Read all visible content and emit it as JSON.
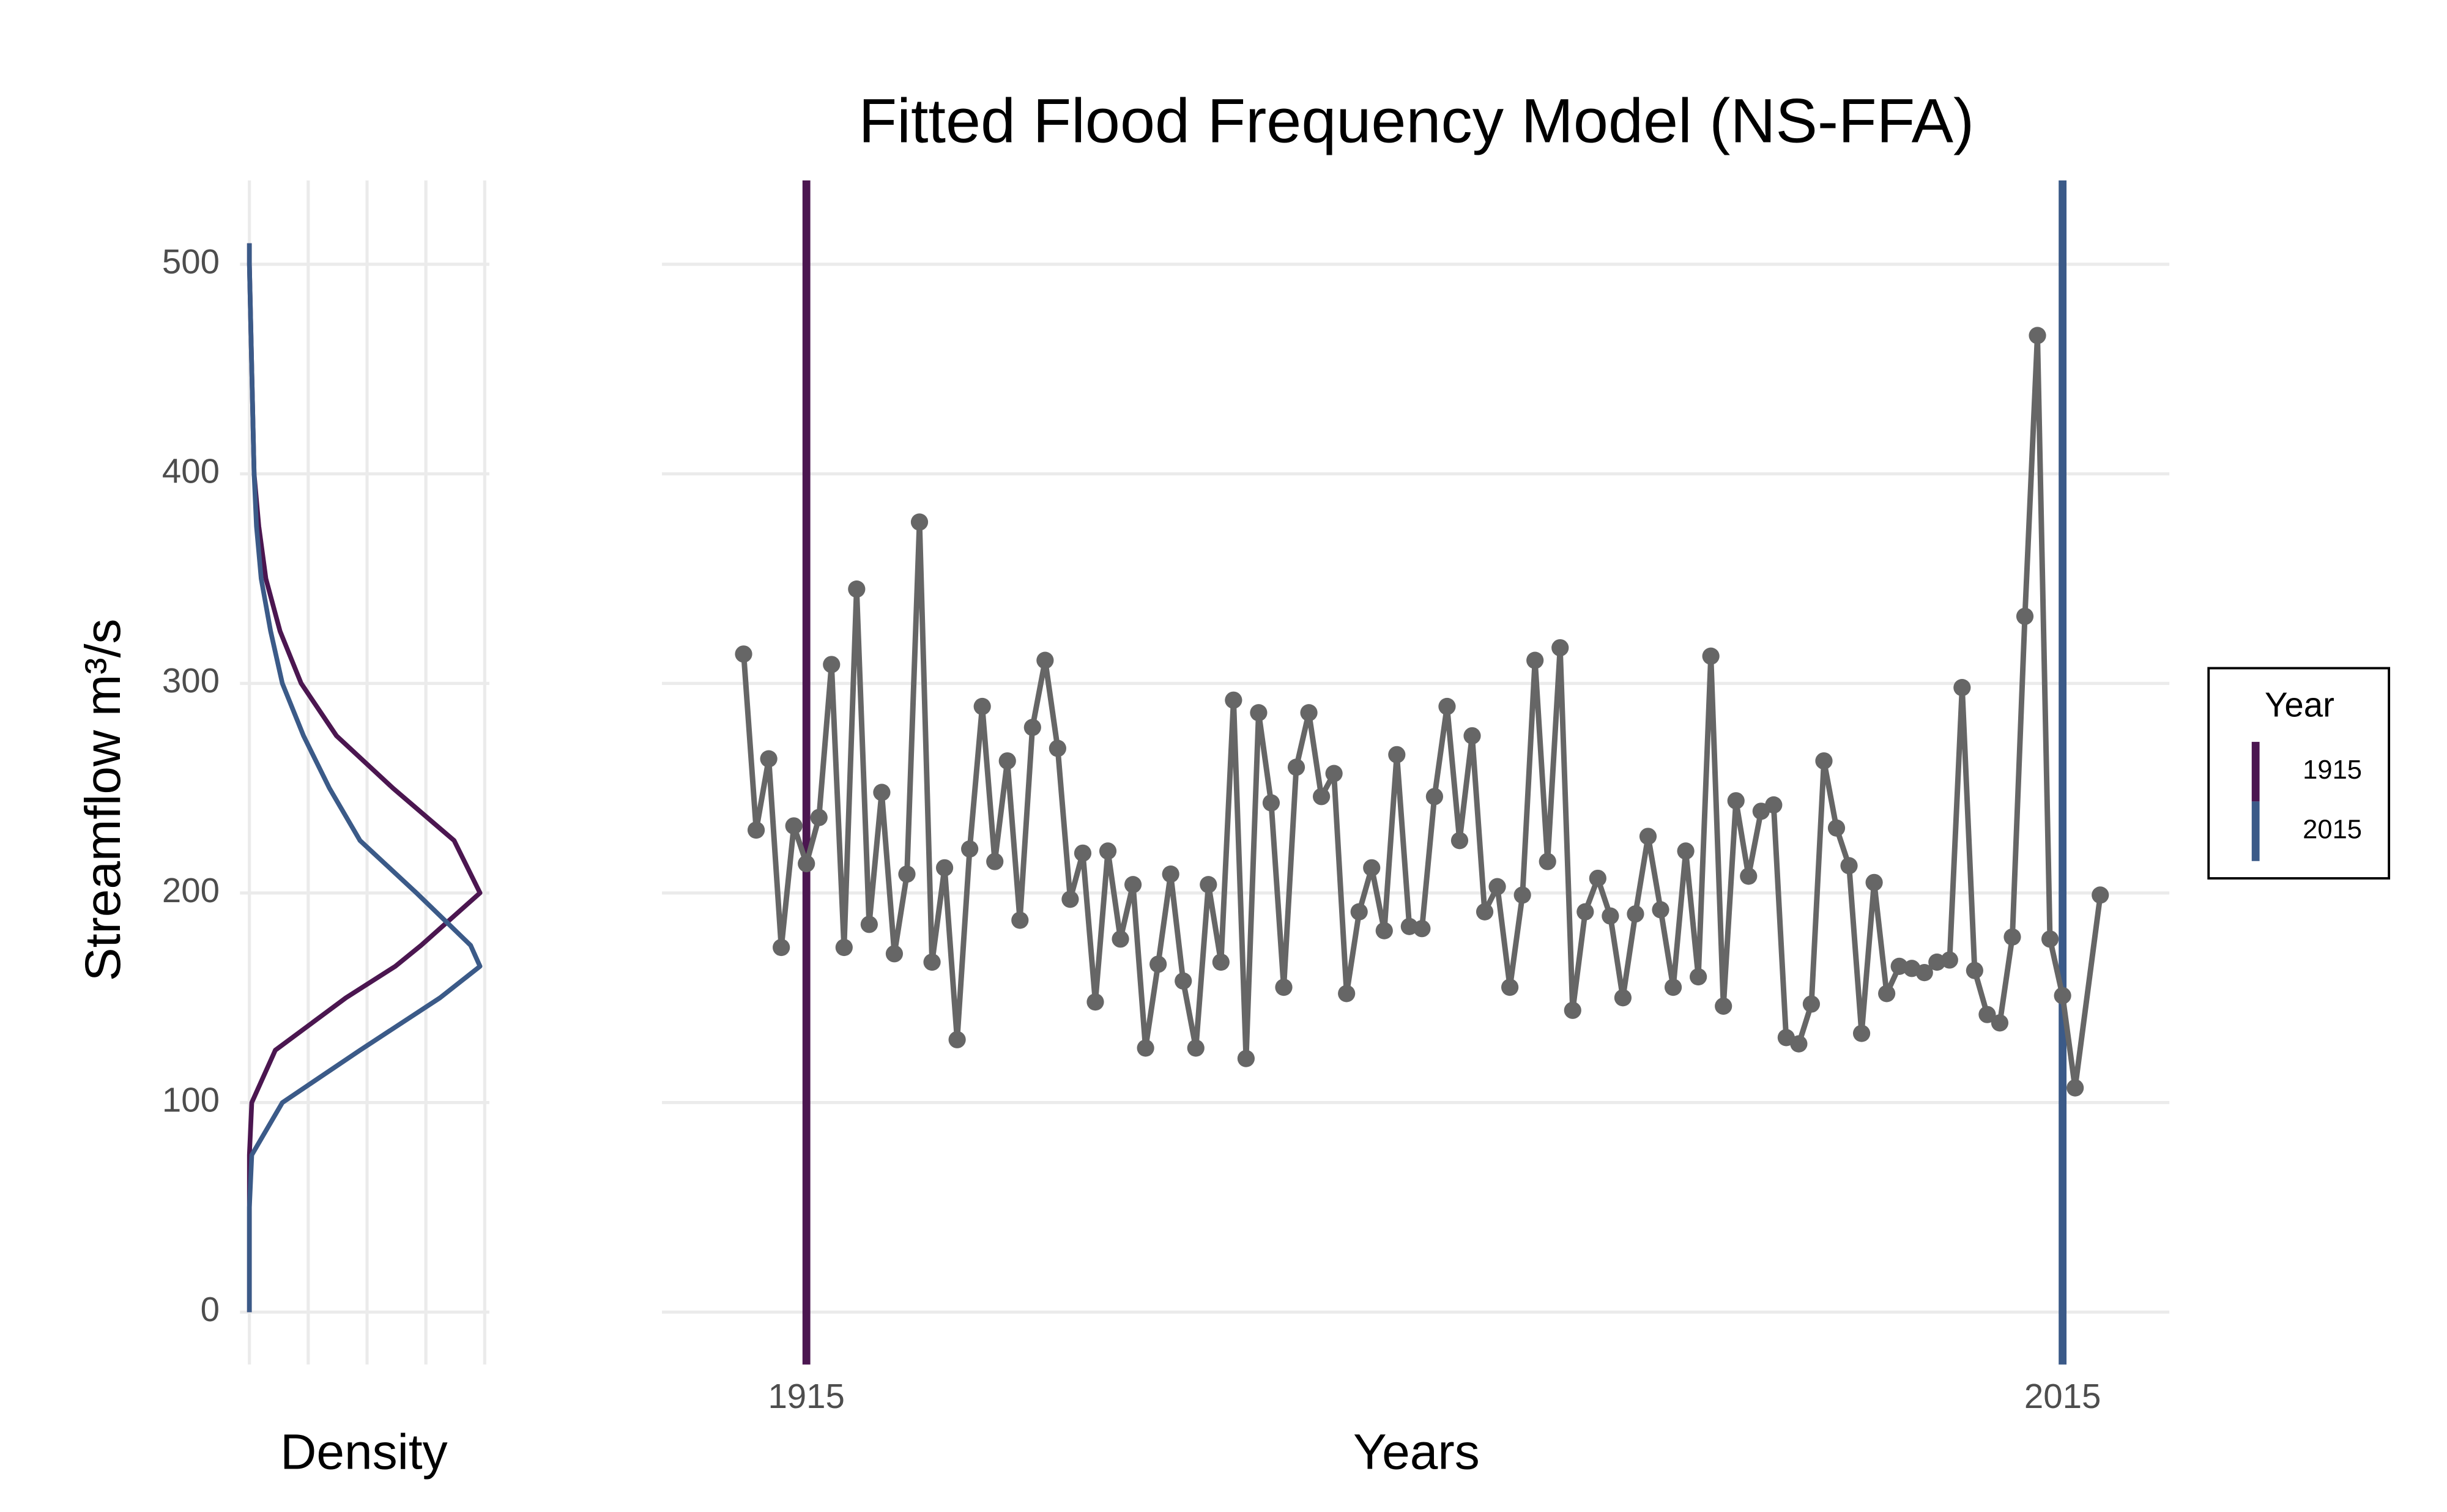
{
  "chart_data": [
    {
      "type": "density",
      "xlabel": "Density",
      "ylabel": "Streamflow m³/s",
      "xlim": [
        0,
        0.01
      ],
      "xticks": [
        0,
        0.0025,
        0.005,
        0.0075,
        0.01
      ],
      "ylim": [
        -25,
        540
      ],
      "yticks": [
        0,
        100,
        200,
        300,
        400,
        500
      ],
      "grid": true,
      "y": [
        0,
        50,
        75,
        100,
        125,
        150,
        165,
        175,
        200,
        225,
        250,
        275,
        300,
        325,
        350,
        375,
        400,
        450,
        500,
        510
      ],
      "series": [
        {
          "name": "1915",
          "color": "#4b1650",
          "values": [
            0,
            0,
            0,
            0.0001,
            0.0011,
            0.0041,
            0.0062,
            0.0073,
            0.0098,
            0.0087,
            0.0061,
            0.0037,
            0.0022,
            0.0013,
            0.0007,
            0.0004,
            0.0002,
            0.0001,
            0,
            0
          ]
        },
        {
          "name": "2015",
          "color": "#3b5a88",
          "values": [
            0,
            0,
            0.0001,
            0.0014,
            0.0047,
            0.0081,
            0.0098,
            0.0094,
            0.0071,
            0.0047,
            0.0034,
            0.0023,
            0.0014,
            0.0009,
            0.0005,
            0.0003,
            0.0002,
            0.0001,
            0,
            0
          ]
        }
      ]
    },
    {
      "type": "line",
      "title": "Fitted Flood Frequency Model (NS-FFA)",
      "xlabel": "Years",
      "xlim": [
        1903.5,
        2023.5
      ],
      "xticks": [
        1915,
        2015
      ],
      "ylim": [
        -25,
        540
      ],
      "yticks": [
        0,
        100,
        200,
        300,
        400,
        500
      ],
      "grid": true,
      "legend_title": "Year",
      "legend": "right",
      "vlines": [
        1915,
        2015
      ],
      "color": "#666666",
      "x": [
        1910,
        1911,
        1912,
        1913,
        1914,
        1915,
        1916,
        1917,
        1918,
        1919,
        1920,
        1921,
        1922,
        1923,
        1924,
        1925,
        1926,
        1927,
        1928,
        1929,
        1930,
        1931,
        1932,
        1933,
        1934,
        1935,
        1936,
        1937,
        1938,
        1939,
        1940,
        1941,
        1942,
        1943,
        1944,
        1945,
        1946,
        1947,
        1948,
        1949,
        1950,
        1951,
        1952,
        1953,
        1954,
        1955,
        1956,
        1957,
        1958,
        1959,
        1960,
        1961,
        1962,
        1963,
        1964,
        1965,
        1966,
        1967,
        1968,
        1969,
        1970,
        1971,
        1972,
        1973,
        1974,
        1975,
        1976,
        1977,
        1978,
        1979,
        1980,
        1981,
        1982,
        1983,
        1984,
        1985,
        1986,
        1987,
        1988,
        1989,
        1990,
        1991,
        1992,
        1993,
        1994,
        1995,
        1996,
        1997,
        1998,
        1999,
        2000,
        2001,
        2002,
        2003,
        2004,
        2005,
        2006,
        2007,
        2008,
        2009,
        2010,
        2011,
        2012,
        2013,
        2014,
        2015,
        2016,
        2018
      ],
      "values": [
        314,
        230,
        264,
        174,
        232,
        214,
        236,
        309,
        174,
        345,
        185,
        248,
        171,
        209,
        377,
        167,
        212,
        130,
        221,
        289,
        215,
        263,
        187,
        279,
        311,
        269,
        197,
        219,
        148,
        220,
        178,
        204,
        126,
        166,
        209,
        158,
        126,
        204,
        167,
        292,
        121,
        286,
        243,
        155,
        260,
        286,
        246,
        257,
        152,
        191,
        212,
        182,
        266,
        184,
        183,
        246,
        289,
        225,
        275,
        191,
        203,
        155,
        199,
        311,
        215,
        317,
        144,
        191,
        207,
        189,
        150,
        190,
        227,
        192,
        155,
        220,
        160,
        313,
        146,
        244,
        208,
        239,
        242,
        131,
        128,
        147,
        263,
        231,
        213,
        133,
        205,
        152,
        165,
        164,
        162,
        167,
        168,
        298,
        163,
        142,
        138,
        179,
        332,
        466,
        178,
        151,
        107,
        199
      ]
    }
  ]
}
